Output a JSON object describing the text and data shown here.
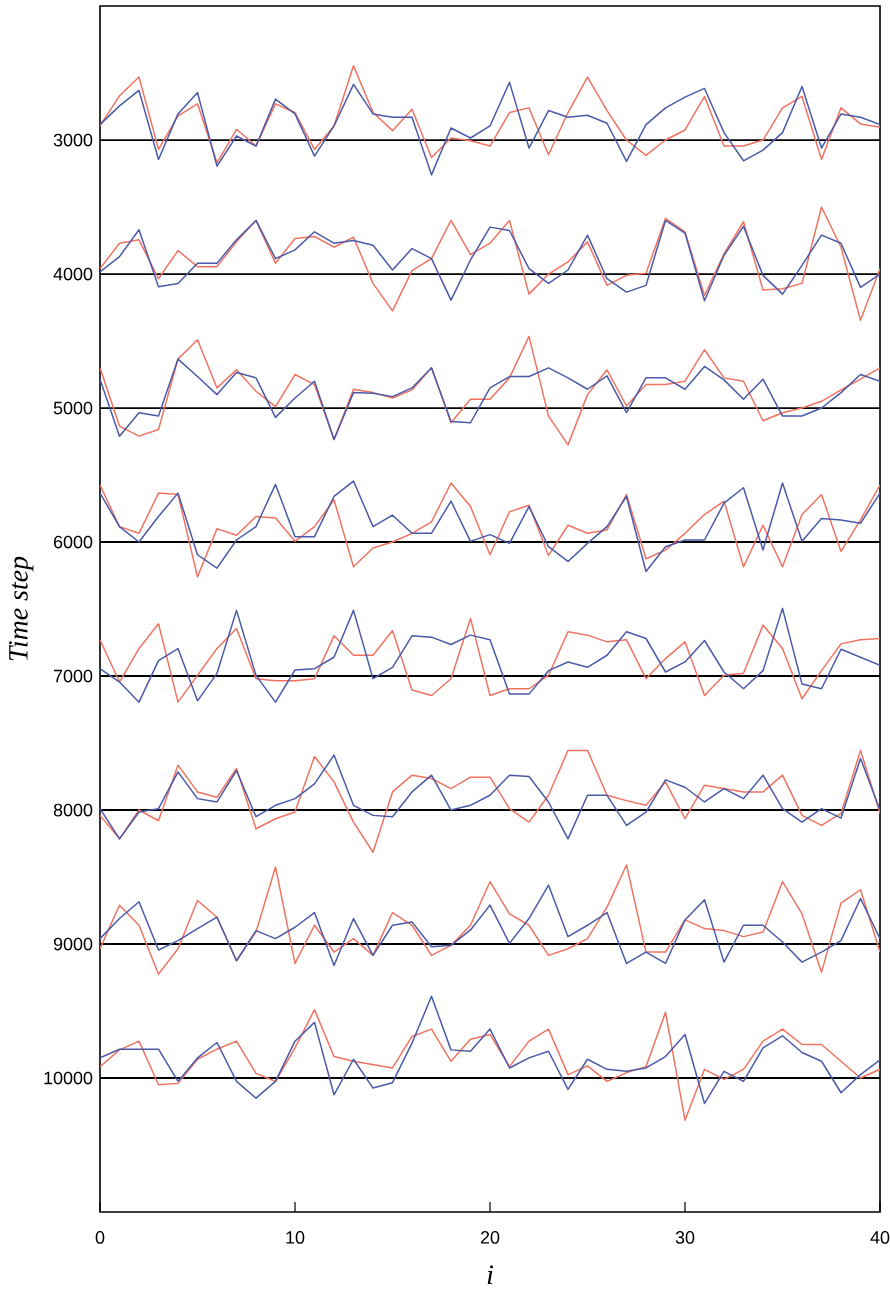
{
  "chart_data": {
    "type": "line",
    "xlabel": "i",
    "ylabel": "Time step",
    "x": [
      0,
      1,
      2,
      3,
      4,
      5,
      6,
      7,
      8,
      9,
      10,
      11,
      12,
      13,
      14,
      15,
      16,
      17,
      18,
      19,
      20,
      21,
      22,
      23,
      24,
      25,
      26,
      27,
      28,
      29,
      30,
      31,
      32,
      33,
      34,
      35,
      36,
      37,
      38,
      39,
      40
    ],
    "xlim": [
      0,
      40
    ],
    "xticks": [
      0,
      10,
      20,
      30,
      40
    ],
    "ylim": [
      11000,
      2000
    ],
    "yticks": [
      3000,
      4000,
      5000,
      6000,
      7000,
      8000,
      9000,
      10000
    ],
    "ref_lines": [
      {
        "axis": "y",
        "value": 3000,
        "color": "#000000"
      },
      {
        "axis": "y",
        "value": 4000,
        "color": "#000000"
      },
      {
        "axis": "y",
        "value": 5000,
        "color": "#000000"
      },
      {
        "axis": "y",
        "value": 6000,
        "color": "#000000"
      },
      {
        "axis": "y",
        "value": 7000,
        "color": "#000000"
      },
      {
        "axis": "y",
        "value": 8000,
        "color": "#000000"
      },
      {
        "axis": "y",
        "value": 9000,
        "color": "#000000"
      },
      {
        "axis": "y",
        "value": 10000,
        "color": "#000000"
      }
    ],
    "series": [
      {
        "color": "#f07362",
        "values": [
          2895,
          2670,
          2530,
          3070,
          2820,
          2730,
          3170,
          2920,
          3045,
          2730,
          2795,
          3070,
          2895,
          2445,
          2795,
          2930,
          2770,
          3130,
          2985,
          3005,
          3045,
          2795,
          2760,
          3110,
          2795,
          2530,
          2780,
          3000,
          3115,
          3000,
          2925,
          2675,
          3045,
          3045,
          3000,
          2760,
          2675,
          3145,
          2760,
          2880,
          2905
        ]
      },
      {
        "color": "#4b5aa8",
        "values": [
          2885,
          2745,
          2630,
          3145,
          2805,
          2645,
          3195,
          2970,
          3045,
          2695,
          2805,
          3120,
          2895,
          2585,
          2805,
          2830,
          2830,
          3260,
          2910,
          2985,
          2895,
          2570,
          3060,
          2780,
          2830,
          2815,
          2875,
          3160,
          2885,
          2760,
          2680,
          2615,
          2945,
          3155,
          3075,
          2945,
          2600,
          3060,
          2805,
          2830,
          2885
        ]
      },
      {
        "color": "#f07362",
        "values": [
          3960,
          3770,
          3745,
          4035,
          3825,
          3945,
          3945,
          3760,
          3600,
          3920,
          3735,
          3720,
          3800,
          3725,
          4070,
          4275,
          3975,
          3885,
          3600,
          3855,
          3770,
          3600,
          4150,
          4000,
          3910,
          3760,
          4085,
          4010,
          3995,
          3585,
          3685,
          4160,
          3850,
          3610,
          4120,
          4110,
          4070,
          3500,
          3800,
          4345,
          3960
        ]
      },
      {
        "color": "#4b5aa8",
        "values": [
          3985,
          3870,
          3670,
          4095,
          4070,
          3920,
          3920,
          3745,
          3600,
          3885,
          3820,
          3685,
          3770,
          3750,
          3785,
          3970,
          3810,
          3885,
          4195,
          3895,
          3650,
          3675,
          3960,
          4070,
          3970,
          3710,
          4035,
          4135,
          4085,
          3600,
          3695,
          4200,
          3860,
          3645,
          4010,
          4150,
          3935,
          3710,
          3770,
          4100,
          4000
        ]
      },
      {
        "color": "#f07362",
        "values": [
          4700,
          5135,
          5210,
          5160,
          4635,
          4490,
          4850,
          4715,
          4875,
          4990,
          4750,
          4825,
          5235,
          4860,
          4885,
          4925,
          4865,
          4700,
          5110,
          4935,
          4935,
          4775,
          4465,
          5060,
          5275,
          4900,
          4715,
          4985,
          4825,
          4825,
          4800,
          4565,
          4775,
          4800,
          5095,
          5035,
          5000,
          4950,
          4865,
          4785,
          4700
        ]
      },
      {
        "color": "#4b5aa8",
        "values": [
          4785,
          5210,
          5035,
          5060,
          4635,
          4765,
          4900,
          4735,
          4775,
          5070,
          4925,
          4800,
          5235,
          4885,
          4890,
          4915,
          4850,
          4700,
          5100,
          5110,
          4850,
          4765,
          4765,
          4700,
          4775,
          4860,
          4760,
          5035,
          4775,
          4775,
          4860,
          4690,
          4790,
          4935,
          4785,
          5060,
          5060,
          5000,
          4885,
          4750,
          4800
        ]
      },
      {
        "color": "#f07362",
        "values": [
          5575,
          5885,
          5935,
          5635,
          5645,
          6260,
          5900,
          5950,
          5810,
          5820,
          5995,
          5885,
          5685,
          6185,
          6045,
          6000,
          5935,
          5850,
          5560,
          5735,
          6095,
          5775,
          5725,
          6100,
          5875,
          5935,
          5910,
          5645,
          6125,
          6060,
          5935,
          5795,
          5695,
          6185,
          5875,
          6185,
          5795,
          5645,
          6070,
          5835,
          5575
        ]
      },
      {
        "color": "#4b5aa8",
        "values": [
          5635,
          5885,
          6000,
          5810,
          5635,
          6095,
          6195,
          5985,
          5885,
          5570,
          5960,
          5960,
          5660,
          5545,
          5885,
          5800,
          5935,
          5935,
          5695,
          5995,
          5945,
          6010,
          5735,
          6035,
          6145,
          6010,
          5885,
          5660,
          6220,
          6035,
          5985,
          5985,
          5710,
          5595,
          6060,
          5560,
          5995,
          5825,
          5835,
          5860,
          5635
        ]
      },
      {
        "color": "#f07362",
        "values": [
          6730,
          7045,
          6795,
          6610,
          7195,
          6995,
          6795,
          6645,
          7020,
          7035,
          7035,
          7020,
          6700,
          6845,
          6845,
          6660,
          7105,
          7145,
          7020,
          6570,
          7145,
          7095,
          7095,
          6995,
          6670,
          6695,
          6745,
          6730,
          7020,
          6870,
          6745,
          7145,
          6995,
          6980,
          6620,
          6795,
          7170,
          6960,
          6760,
          6730,
          6720
        ]
      },
      {
        "color": "#4b5aa8",
        "values": [
          6945,
          7045,
          7195,
          6885,
          6795,
          7185,
          6980,
          6510,
          6995,
          7195,
          6955,
          6945,
          6860,
          6510,
          7020,
          6935,
          6700,
          6710,
          6765,
          6695,
          6730,
          7135,
          7135,
          6960,
          6895,
          6935,
          6845,
          6670,
          6720,
          6970,
          6895,
          6735,
          6970,
          7095,
          6960,
          6495,
          7060,
          7095,
          6800,
          6860,
          6920
        ]
      },
      {
        "color": "#f07362",
        "values": [
          8040,
          8215,
          8000,
          8080,
          7665,
          7865,
          7905,
          7690,
          8140,
          8065,
          8015,
          7600,
          7790,
          8090,
          8315,
          7865,
          7740,
          7765,
          7840,
          7755,
          7755,
          7990,
          8090,
          7890,
          7555,
          7555,
          7890,
          7930,
          7965,
          7790,
          8065,
          7815,
          7840,
          7865,
          7865,
          7740,
          8040,
          8115,
          8025,
          7555,
          8025
        ]
      },
      {
        "color": "#4b5aa8",
        "values": [
          7990,
          8215,
          8015,
          7990,
          7715,
          7915,
          7940,
          7705,
          8050,
          7965,
          7915,
          7805,
          7590,
          7965,
          8040,
          8050,
          7865,
          7740,
          8000,
          7965,
          7890,
          7740,
          7750,
          7940,
          8215,
          7890,
          7890,
          8115,
          8015,
          7775,
          7830,
          7940,
          7840,
          7915,
          7740,
          7990,
          8090,
          7990,
          8060,
          7615,
          8000
        ]
      },
      {
        "color": "#f07362",
        "values": [
          9035,
          8710,
          8860,
          9225,
          9035,
          8675,
          8800,
          9125,
          8910,
          8425,
          9145,
          8860,
          9060,
          8960,
          9085,
          8765,
          8860,
          9085,
          9010,
          8860,
          8535,
          8775,
          8860,
          9085,
          9035,
          8960,
          8725,
          8410,
          9060,
          9060,
          8820,
          8885,
          8900,
          8945,
          8910,
          8535,
          8775,
          9210,
          8695,
          8595,
          9060
        ]
      },
      {
        "color": "#4b5aa8",
        "values": [
          8960,
          8810,
          8685,
          9045,
          8975,
          8885,
          8800,
          9125,
          8900,
          8960,
          8875,
          8765,
          9160,
          8810,
          9085,
          8860,
          8835,
          9020,
          9010,
          8895,
          8710,
          8995,
          8810,
          8560,
          8945,
          8860,
          8765,
          9145,
          9060,
          9145,
          8820,
          8670,
          9135,
          8860,
          8860,
          8985,
          9135,
          9060,
          8975,
          8660,
          8960
        ]
      },
      {
        "color": "#f07362",
        "values": [
          9915,
          9790,
          9725,
          10050,
          10040,
          9860,
          9785,
          9725,
          9965,
          10025,
          9775,
          9490,
          9840,
          9875,
          9900,
          9925,
          9690,
          9635,
          9875,
          9710,
          9675,
          9915,
          9725,
          9635,
          9975,
          9910,
          10025,
          9960,
          9915,
          9510,
          10315,
          9935,
          10010,
          9935,
          9725,
          9635,
          9750,
          9750,
          9875,
          10000,
          9935
        ]
      },
      {
        "color": "#4b5aa8",
        "values": [
          9850,
          9785,
          9785,
          9785,
          10025,
          9850,
          9735,
          10025,
          10150,
          10025,
          9725,
          9585,
          10125,
          9860,
          10075,
          10035,
          9740,
          9390,
          9790,
          9800,
          9635,
          9925,
          9850,
          9800,
          10085,
          9860,
          9935,
          9950,
          9925,
          9840,
          9675,
          10190,
          9950,
          10025,
          9775,
          9685,
          9810,
          9875,
          10110,
          9975,
          9865
        ]
      }
    ]
  }
}
